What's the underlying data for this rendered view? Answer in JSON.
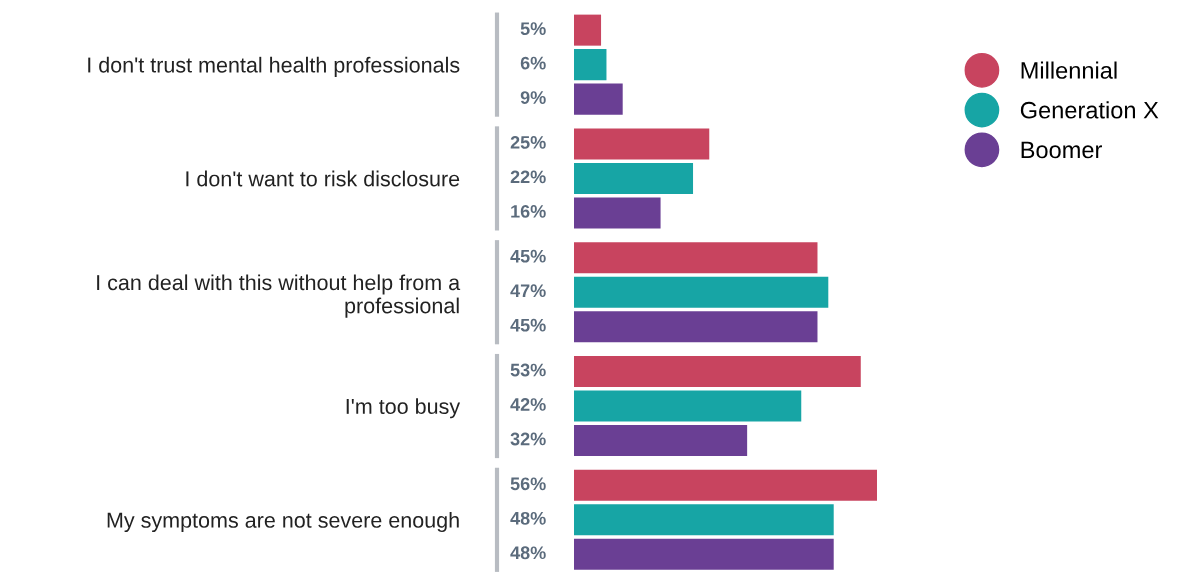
{
  "chart_data": {
    "type": "bar",
    "orientation": "horizontal",
    "categories": [
      "I don't trust mental health professionals",
      "I don't want to risk disclosure",
      "I can deal with this without help from a\nprofessional",
      "I'm too busy",
      "My symptoms are not severe enough"
    ],
    "series": [
      {
        "name": "Millennial",
        "color": "#c8445f",
        "values": [
          5,
          25,
          45,
          53,
          56
        ],
        "value_labels": [
          "5%",
          "25%",
          "45%",
          "53%",
          "56%"
        ]
      },
      {
        "name": "Generation X",
        "color": "#17a5a5",
        "values": [
          6,
          22,
          47,
          42,
          48
        ],
        "value_labels": [
          "6%",
          "22%",
          "47%",
          "42%",
          "48%"
        ]
      },
      {
        "name": "Boomer",
        "color": "#6a3f94",
        "values": [
          9,
          16,
          45,
          32,
          48
        ],
        "value_labels": [
          "9%",
          "16%",
          "45%",
          "32%",
          "48%"
        ]
      }
    ],
    "legend": "top right",
    "grid": false,
    "marker": "circle"
  }
}
